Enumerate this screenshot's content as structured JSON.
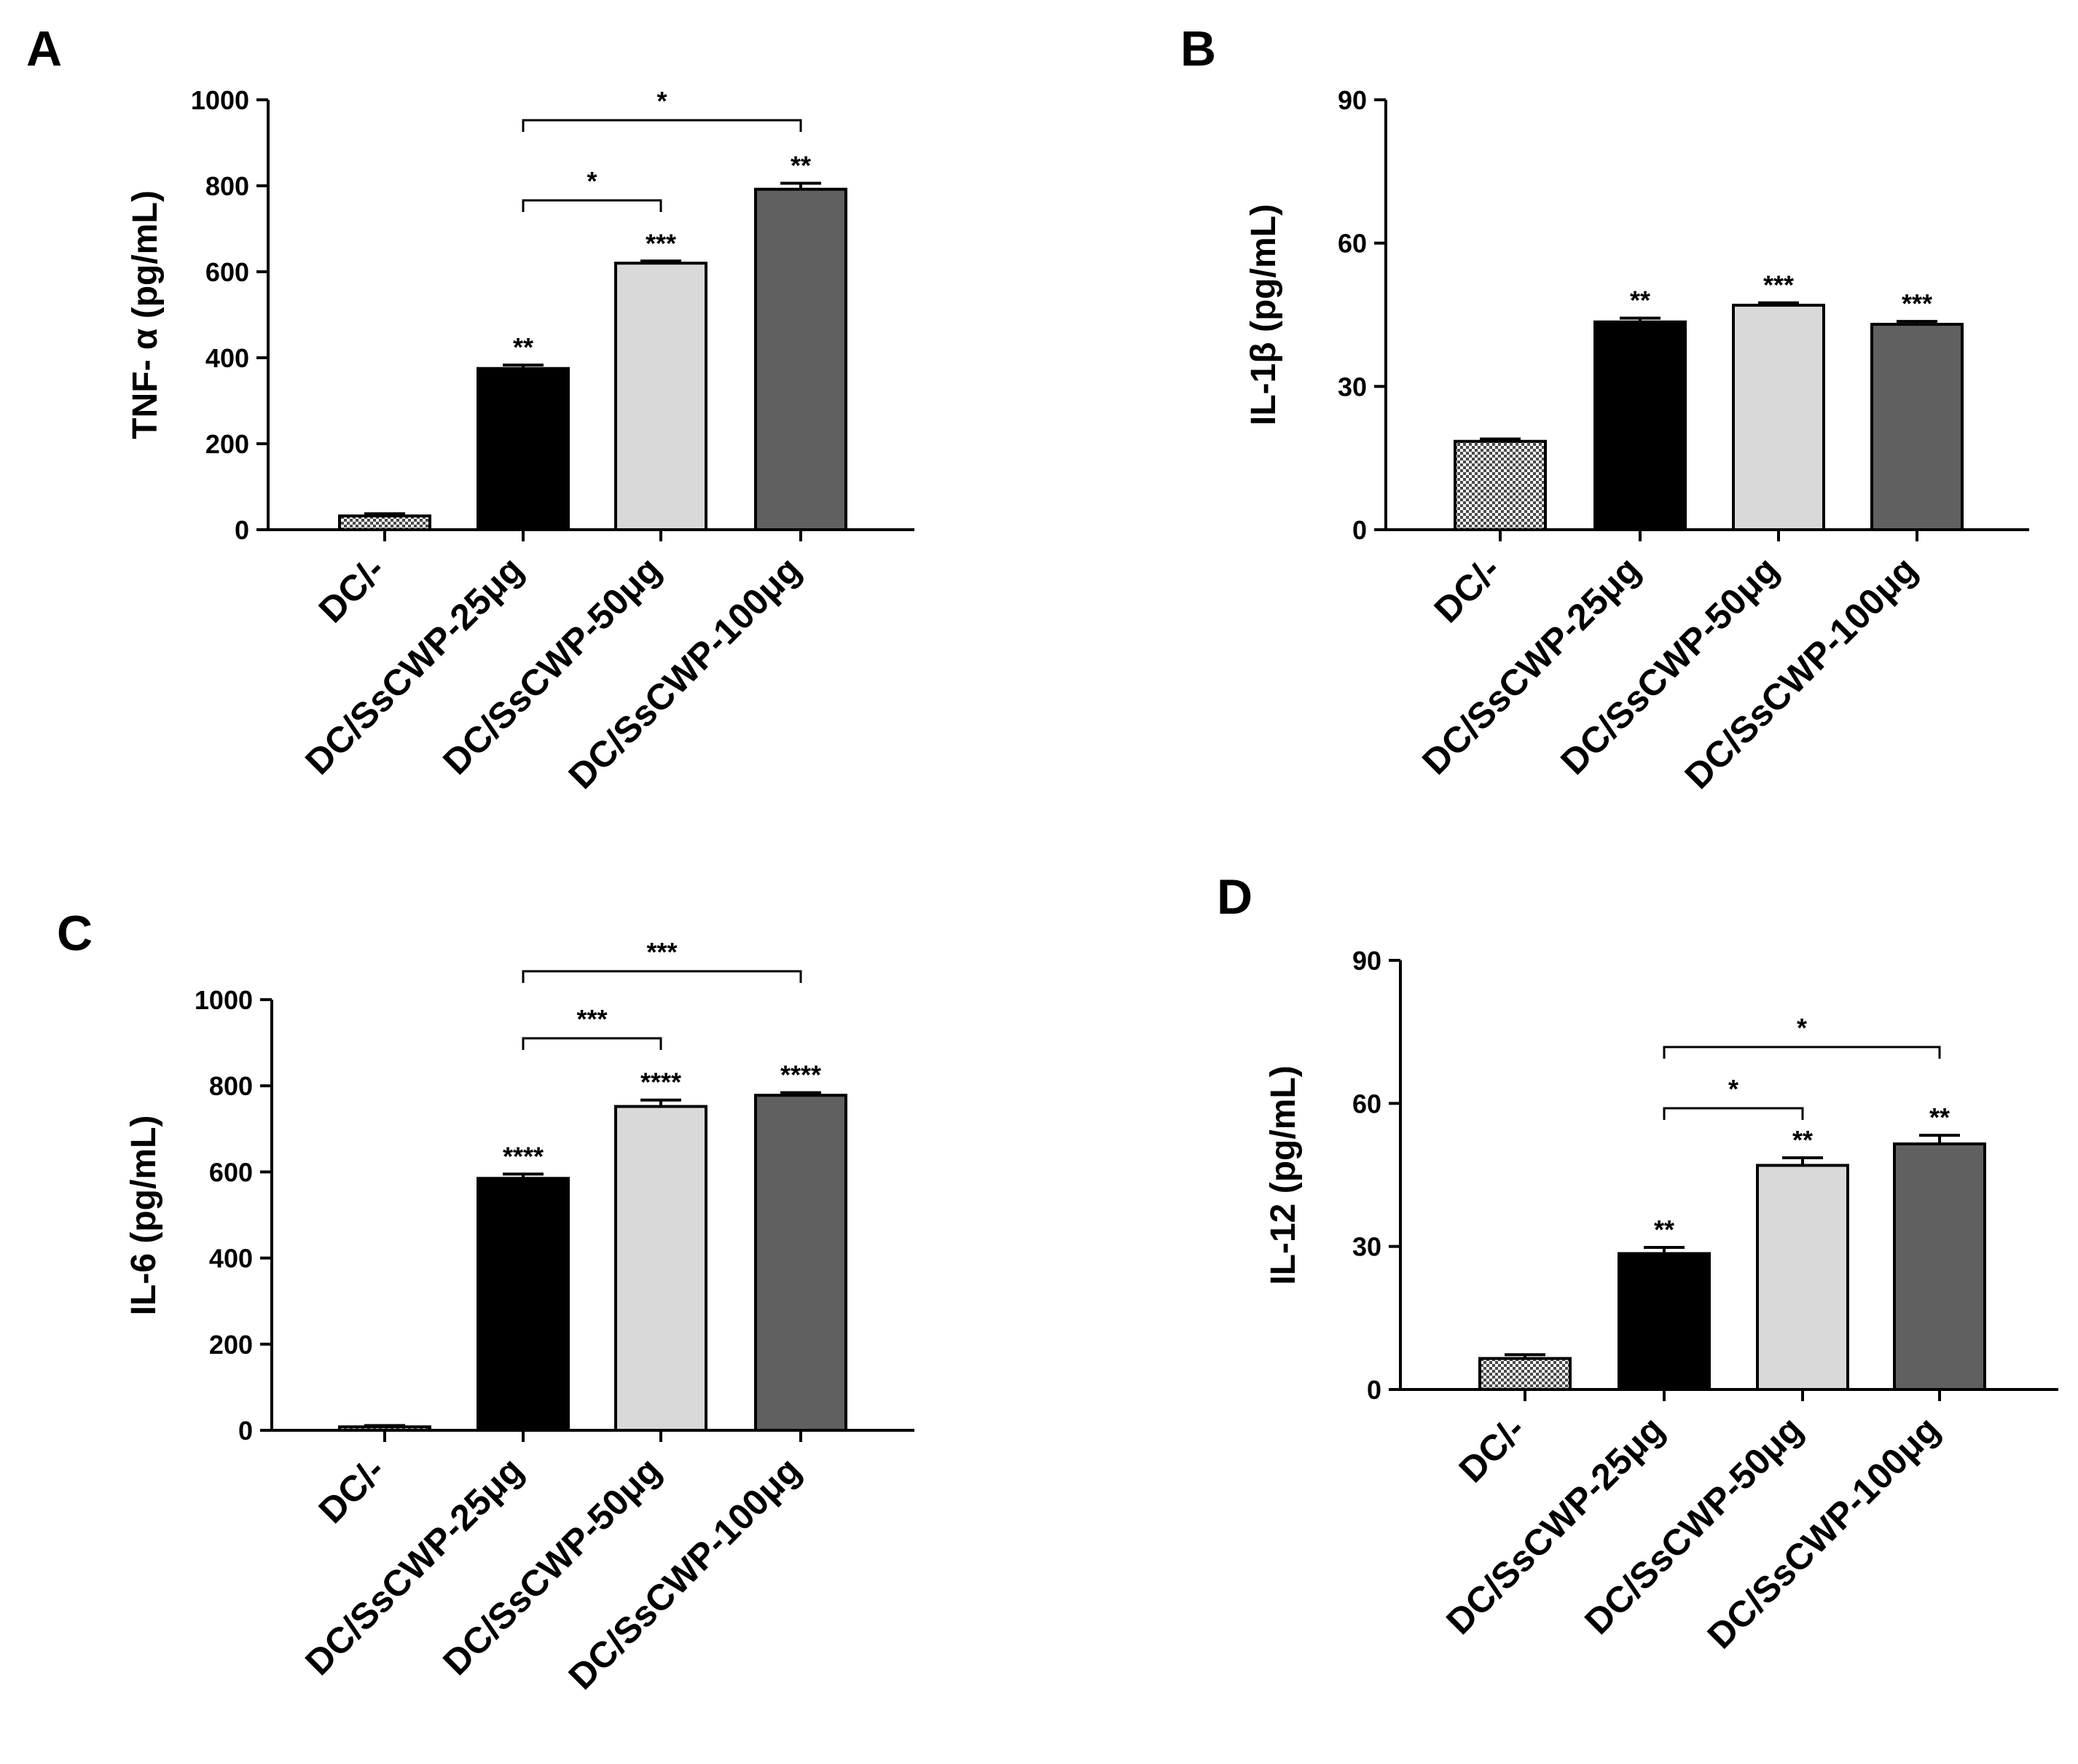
{
  "figure": {
    "categories": [
      "DC/-",
      "DC/SsCWP-25μg",
      "DC/SsCWP-50μg",
      "DC/SsCWP-100μg"
    ],
    "colors": {
      "control_fill": "pattern-checker",
      "dose25": "#000000",
      "dose50": "#d9d9d9",
      "dose100": "#606060",
      "axis": "#000000"
    }
  },
  "chart_data": [
    {
      "type": "bar",
      "panel": "A",
      "ylabel": "TNF- α (pg/mL)",
      "ylim": [
        0,
        1000
      ],
      "yticks": [
        "0",
        "200",
        "400",
        "600",
        "800",
        "1000"
      ],
      "categories": [
        "DC/-",
        "DC/SsCWP-25μg",
        "DC/SsCWP-50μg",
        "DC/SsCWP-100μg"
      ],
      "values": [
        32,
        375,
        620,
        792
      ],
      "errors": [
        5,
        8,
        5,
        14
      ],
      "significance": [
        "",
        "**",
        "***",
        "**"
      ],
      "brackets": [
        {
          "from": 1,
          "to": 2,
          "label": "*"
        },
        {
          "from": 1,
          "to": 3,
          "label": "*"
        }
      ]
    },
    {
      "type": "bar",
      "panel": "B",
      "ylabel": "IL-1β (pg/mL)",
      "ylim": [
        0,
        90
      ],
      "yticks": [
        "0",
        "30",
        "60",
        "90"
      ],
      "categories": [
        "DC/-",
        "DC/SsCWP-25μg",
        "DC/SsCWP-50μg",
        "DC/SsCWP-100μg"
      ],
      "values": [
        18.5,
        43.5,
        47,
        43
      ],
      "errors": [
        0.5,
        0.8,
        0.5,
        0.6
      ],
      "significance": [
        "",
        "**",
        "***",
        "***"
      ],
      "brackets": []
    },
    {
      "type": "bar",
      "panel": "C",
      "ylabel": "IL-6 (pg/mL)",
      "ylim": [
        0,
        1000
      ],
      "yticks": [
        "0",
        "200",
        "400",
        "600",
        "800",
        "1000"
      ],
      "categories": [
        "DC/-",
        "DC/SsCWP-25μg",
        "DC/SsCWP-50μg",
        "DC/SsCWP-100μg"
      ],
      "values": [
        8,
        585,
        752,
        778
      ],
      "errors": [
        3,
        10,
        15,
        6
      ],
      "significance": [
        "",
        "****",
        "****",
        "****"
      ],
      "brackets": [
        {
          "from": 1,
          "to": 2,
          "label": "***"
        },
        {
          "from": 1,
          "to": 3,
          "label": "***"
        }
      ]
    },
    {
      "type": "bar",
      "panel": "D",
      "ylabel": "IL-12 (pg/mL)",
      "ylim": [
        0,
        90
      ],
      "yticks": [
        "0",
        "30",
        "60",
        "90"
      ],
      "categories": [
        "DC/-",
        "DC/SsCWP-25μg",
        "DC/SsCWP-50μg",
        "DC/SsCWP-100μg"
      ],
      "values": [
        6.5,
        28.5,
        47,
        51.5
      ],
      "errors": [
        0.8,
        1.3,
        1.6,
        1.8
      ],
      "significance": [
        "",
        "**",
        "**",
        "**"
      ],
      "brackets": [
        {
          "from": 1,
          "to": 2,
          "label": "*"
        },
        {
          "from": 1,
          "to": 3,
          "label": "*"
        }
      ]
    }
  ]
}
